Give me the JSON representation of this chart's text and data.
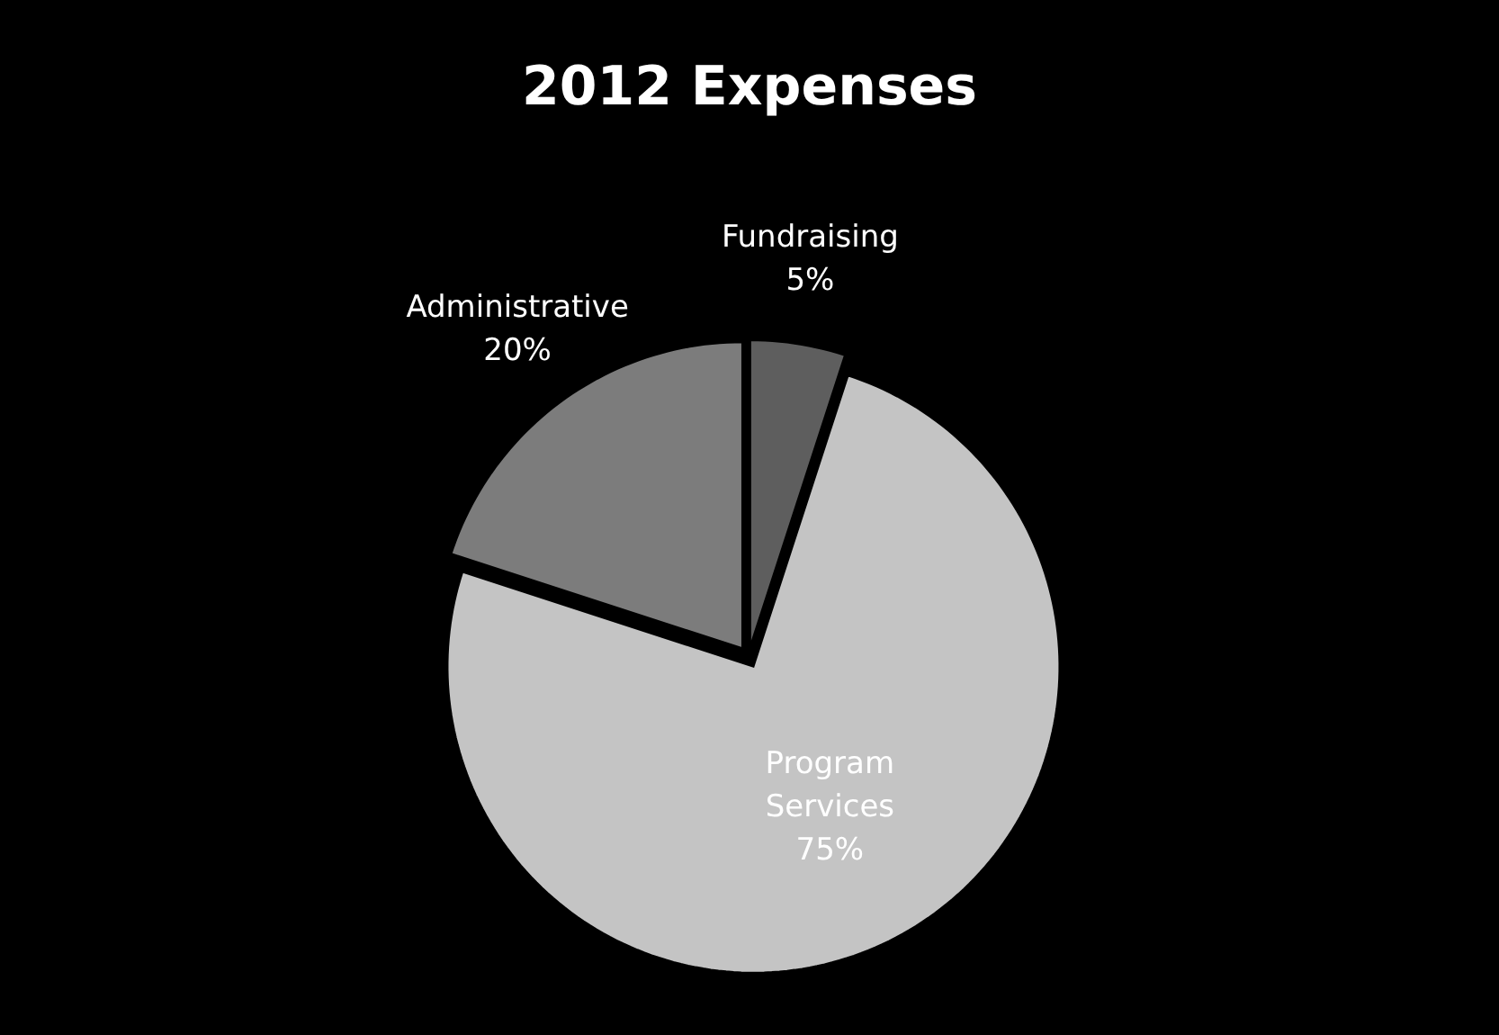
{
  "chart_data": {
    "type": "pie",
    "title": "2012 Expenses",
    "categories": [
      "Fundraising",
      "Program Services",
      "Administrative"
    ],
    "values": [
      5,
      75,
      20
    ],
    "colors": [
      "#5e5e5e",
      "#c4c4c4",
      "#7c7c7c"
    ],
    "value_labels": [
      "5%",
      "75%",
      "20%"
    ]
  }
}
